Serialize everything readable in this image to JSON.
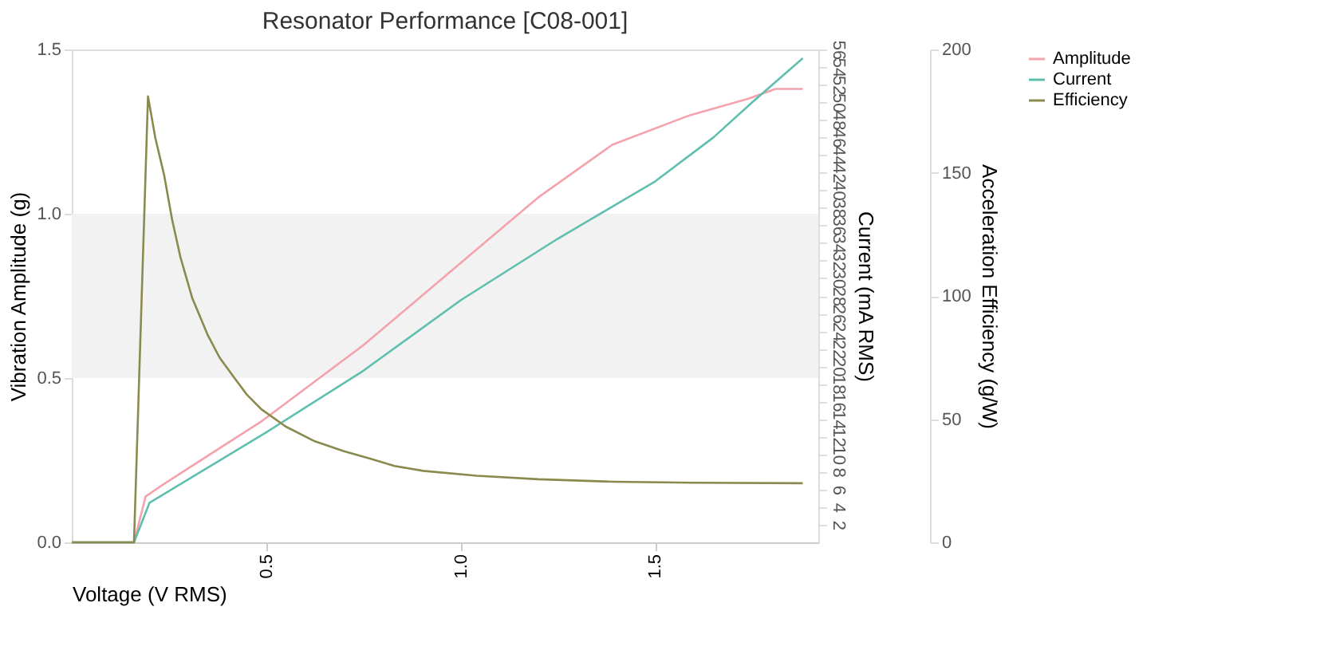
{
  "chart_data": {
    "type": "line",
    "title": "Resonator Performance [C08-001]",
    "xlabel": "Voltage (V RMS)",
    "ylabel": "Vibration Amplitude (g)",
    "y2label": "Current (mA RMS)",
    "y3label": "Acceleration Efficiency (g/W)",
    "xlim": [
      0,
      1.92
    ],
    "xticks": [
      0.5,
      {
        "value": 1,
        "label": "1.0"
      },
      1.5
    ],
    "ylim": [
      0,
      1.5
    ],
    "yticks": [
      {
        "value": 0,
        "label": "0.0"
      },
      0.5,
      {
        "value": 1,
        "label": "1.0"
      },
      1.5
    ],
    "y2lim": [
      0,
      56
    ],
    "y2ticks": [
      2,
      4,
      6,
      8,
      10,
      12,
      14,
      16,
      18,
      20,
      22,
      24,
      26,
      28,
      30,
      32,
      34,
      36,
      38,
      40,
      42,
      44,
      46,
      48,
      50,
      52,
      54,
      56
    ],
    "y3lim": [
      0,
      200
    ],
    "y3ticks": [
      0,
      50,
      100,
      150,
      200
    ],
    "bands": [
      {
        "axis": "y",
        "from": 0.5,
        "to": 1.0,
        "color": "#f2f2f2"
      }
    ],
    "grid": false,
    "legend": "top right",
    "series": [
      {
        "name": "Amplitude",
        "color": "#f4a3ad",
        "x": [
          0,
          0.16,
          0.19,
          0.24,
          0.49,
          0.75,
          0.9,
          1.04,
          1.2,
          1.39,
          1.59,
          1.74,
          1.81,
          1.88
        ],
        "values": [
          0,
          0,
          0.14,
          0.18,
          0.37,
          0.6,
          0.75,
          0.89,
          1.05,
          1.21,
          1.3,
          1.35,
          1.38,
          1.38
        ]
      },
      {
        "name": "Current",
        "color": "#5fbfae",
        "axis": "y2",
        "x": [
          0,
          0.16,
          0.2,
          0.5,
          0.75,
          1.0,
          1.25,
          1.5,
          1.65,
          1.75,
          1.88
        ],
        "values": [
          0,
          0,
          4.5,
          12.5,
          19.5,
          27.5,
          34.5,
          41,
          46,
          50,
          55
        ]
      },
      {
        "name": "Efficiency",
        "color": "#8a8a4e",
        "axis": "y3",
        "x": [
          0,
          0.16,
          0.196,
          0.215,
          0.2375,
          0.258,
          0.279,
          0.31,
          0.35,
          0.38,
          0.417,
          0.45,
          0.4875,
          0.55,
          0.625,
          0.7,
          0.767,
          0.83,
          0.904,
          1.042,
          1.2,
          1.39,
          1.6,
          1.88
        ],
        "values": [
          0,
          0,
          181,
          164,
          149,
          131,
          116,
          99,
          84,
          75,
          67,
          60,
          54,
          47,
          41,
          37,
          34,
          31,
          29,
          27,
          25.6,
          24.6,
          24.2,
          24
        ]
      }
    ]
  }
}
